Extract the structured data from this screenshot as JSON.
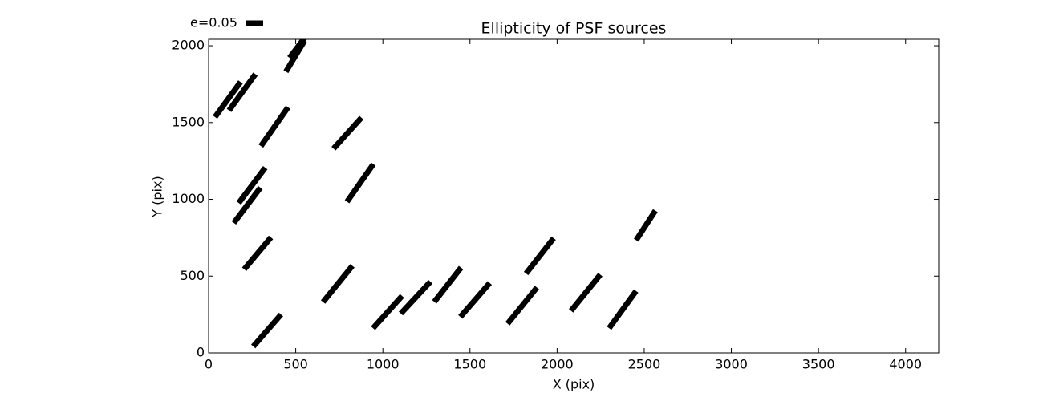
{
  "chart_data": {
    "type": "whisker",
    "title": "Ellipticity of PSF sources",
    "x_label": "X (pix)",
    "y_label": "Y (pix)",
    "xlim": [
      0,
      4190
    ],
    "ylim": [
      0,
      2042
    ],
    "xticks": [
      0,
      500,
      1000,
      1500,
      2000,
      2500,
      3000,
      3500,
      4000
    ],
    "yticks": [
      0,
      500,
      1000,
      1500,
      2000
    ],
    "key": {
      "value": 0.05,
      "label": "e=0.05"
    },
    "color": "#000000",
    "x": [
      110,
      193,
      378,
      497,
      520,
      797,
      249,
      221,
      870,
      281,
      741,
      336,
      1027,
      1188,
      1372,
      1529,
      1800,
      1901,
      2164,
      2376,
      2509
    ],
    "y": [
      1650,
      1697,
      1473,
      1932,
      2005,
      1431,
      1091,
      961,
      1107,
      648,
      449,
      146,
      266,
      360,
      444,
      345,
      308,
      632,
      392,
      282,
      830
    ],
    "e": [
      0.123,
      0.127,
      0.134,
      0.102,
      0.091,
      0.118,
      0.125,
      0.125,
      0.13,
      0.118,
      0.132,
      0.12,
      0.123,
      0.123,
      0.123,
      0.127,
      0.132,
      0.127,
      0.132,
      0.13,
      0.1
    ],
    "angle": [
      54,
      54,
      55,
      59,
      53,
      48,
      53,
      53,
      55,
      50,
      51,
      49,
      48,
      47,
      52,
      49,
      51,
      52,
      51,
      54,
      57
    ]
  }
}
